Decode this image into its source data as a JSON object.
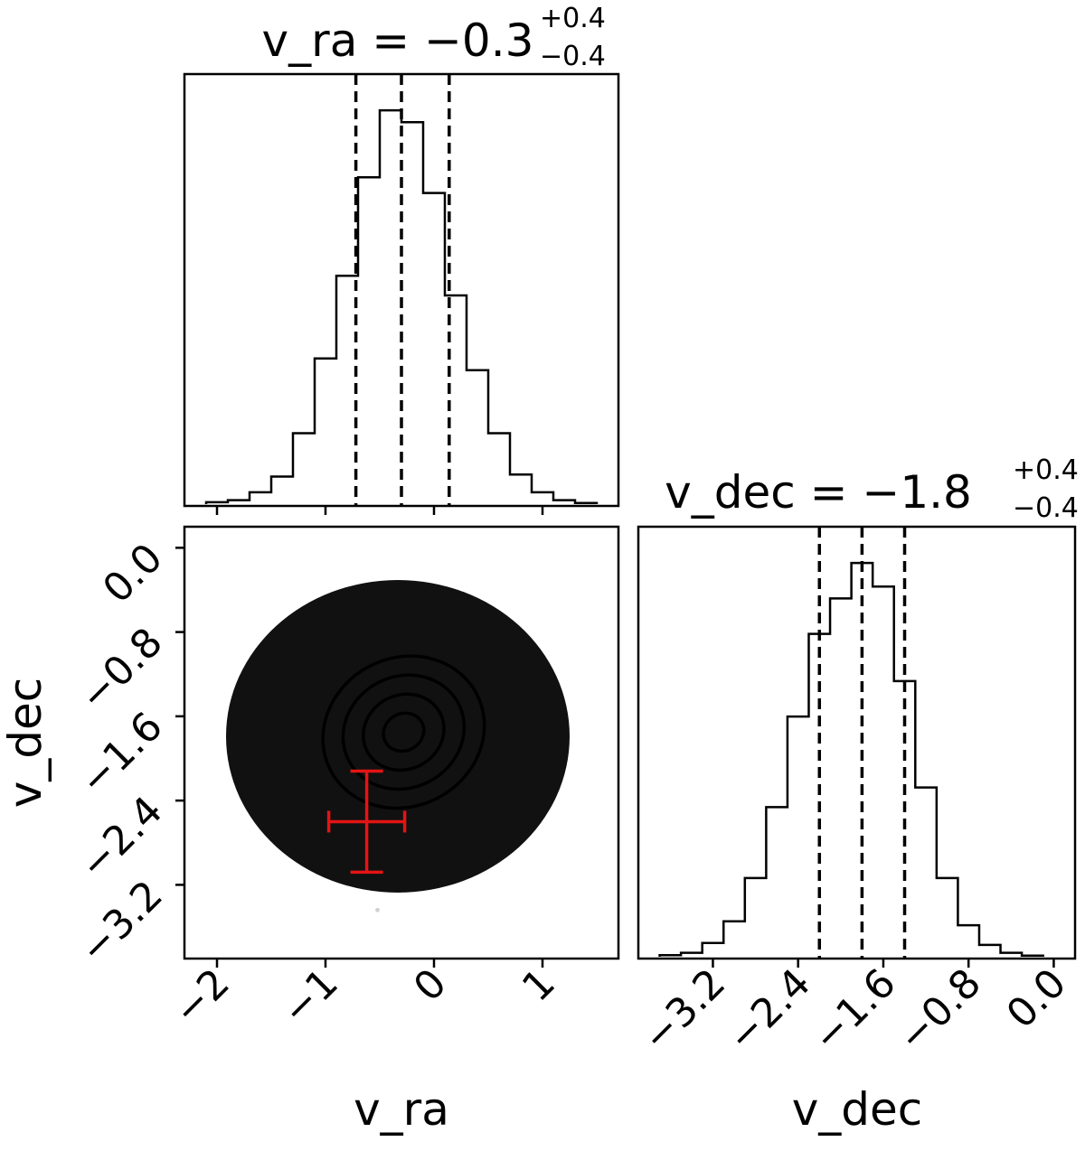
{
  "chart_data": [
    {
      "type": "histogram",
      "panel": "marginal-v_ra",
      "title": {
        "param": "v_ra",
        "median": "−0.3",
        "plus": "+0.4",
        "minus": "−0.4"
      },
      "x_range": [
        -2.3,
        1.7
      ],
      "bin_width": 0.2,
      "bin_edges": [
        -2.1,
        -1.9,
        -1.7,
        -1.5,
        -1.3,
        -1.1,
        -0.9,
        -0.7,
        -0.5,
        -0.3,
        -0.1,
        0.1,
        0.3,
        0.5,
        0.7,
        0.9,
        1.1,
        1.3,
        1.5
      ],
      "counts": [
        0.005,
        0.01,
        0.03,
        0.07,
        0.18,
        0.37,
        0.58,
        0.83,
        1.0,
        0.97,
        0.79,
        0.53,
        0.34,
        0.18,
        0.075,
        0.03,
        0.01,
        0.003
      ],
      "quantiles": [
        -0.72,
        -0.3,
        0.14
      ],
      "x_ticks": [
        "−2",
        "−1",
        "0",
        "1"
      ],
      "x_tick_values": [
        -2,
        -1,
        0,
        1
      ]
    },
    {
      "type": "histogram",
      "panel": "marginal-v_dec",
      "title": {
        "param": "v_dec",
        "median": "−1.8",
        "plus": "+0.4",
        "minus": "−0.4"
      },
      "x_range": [
        -3.9,
        0.2
      ],
      "bin_width": 0.2,
      "bin_edges": [
        -3.7,
        -3.5,
        -3.3,
        -3.1,
        -2.9,
        -2.7,
        -2.5,
        -2.3,
        -2.1,
        -1.9,
        -1.7,
        -1.5,
        -1.3,
        -1.1,
        -0.9,
        -0.7,
        -0.5,
        -0.3,
        -0.1
      ],
      "counts": [
        0.004,
        0.01,
        0.035,
        0.09,
        0.2,
        0.38,
        0.61,
        0.82,
        0.91,
        1.0,
        0.94,
        0.7,
        0.43,
        0.2,
        0.08,
        0.03,
        0.01,
        0.003
      ],
      "quantiles": [
        -2.2,
        -1.8,
        -1.4
      ],
      "x_ticks": [
        "−3.2",
        "−2.4",
        "−1.6",
        "−0.8",
        "0.0"
      ],
      "x_tick_values": [
        -3.2,
        -2.4,
        -1.6,
        -0.8,
        0.0
      ],
      "xlabel": "v_dec"
    },
    {
      "type": "scatter",
      "panel": "joint-v_ra-v_dec",
      "x_range": [
        -2.3,
        1.7
      ],
      "y_range": [
        -3.9,
        0.2
      ],
      "center": [
        -0.28,
        -1.75
      ],
      "spread": [
        0.4,
        0.4
      ],
      "contour_levels": [
        0.5,
        1.0,
        1.5,
        2.0
      ],
      "reference_point": {
        "x": -0.62,
        "y": -2.6,
        "x_err": 0.35,
        "y_err": 0.48,
        "color": "#e41414"
      },
      "x_ticks": [
        "−2",
        "−1",
        "0",
        "1"
      ],
      "x_tick_values": [
        -2,
        -1,
        0,
        1
      ],
      "y_ticks": [
        "0.0",
        "−0.8",
        "−1.6",
        "−2.4",
        "−3.2"
      ],
      "y_tick_values": [
        0.0,
        -0.8,
        -1.6,
        -2.4,
        -3.2
      ],
      "xlabel": "v_ra",
      "ylabel": "v_dec"
    }
  ]
}
